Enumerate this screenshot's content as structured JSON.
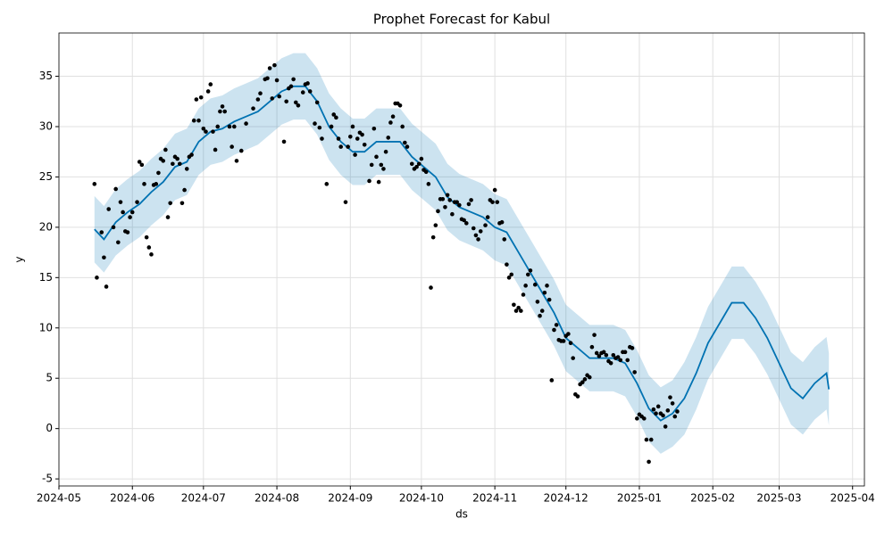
{
  "chart_data": {
    "type": "forecast",
    "title": "Prophet Forecast for Kabul",
    "xlabel": "ds",
    "ylabel": "y",
    "xlim": [
      "2024-05-01",
      "2025-04-06"
    ],
    "ylim": [
      -5.7,
      39.3
    ],
    "xticks": [
      {
        "value": "2024-05-01",
        "label": "2024-05"
      },
      {
        "value": "2024-06-01",
        "label": "2024-06"
      },
      {
        "value": "2024-07-01",
        "label": "2024-07"
      },
      {
        "value": "2024-08-01",
        "label": "2024-08"
      },
      {
        "value": "2024-09-01",
        "label": "2024-09"
      },
      {
        "value": "2024-10-01",
        "label": "2024-10"
      },
      {
        "value": "2024-11-01",
        "label": "2024-11"
      },
      {
        "value": "2024-12-01",
        "label": "2024-12"
      },
      {
        "value": "2025-01-01",
        "label": "2025-01"
      },
      {
        "value": "2025-02-01",
        "label": "2025-02"
      },
      {
        "value": "2025-03-01",
        "label": "2025-03"
      },
      {
        "value": "2025-04-01",
        "label": "2025-04"
      }
    ],
    "yticks": [
      -5,
      0,
      5,
      10,
      15,
      20,
      25,
      30,
      35
    ],
    "grid": true,
    "forecast": {
      "color": "#0072B2",
      "band_color": "#0072B2",
      "x": [
        "2024-05-16",
        "2024-05-20",
        "2024-05-25",
        "2024-05-30",
        "2024-06-04",
        "2024-06-09",
        "2024-06-14",
        "2024-06-19",
        "2024-06-24",
        "2024-06-29",
        "2024-07-04",
        "2024-07-09",
        "2024-07-14",
        "2024-07-19",
        "2024-07-24",
        "2024-07-29",
        "2024-08-03",
        "2024-08-08",
        "2024-08-13",
        "2024-08-18",
        "2024-08-23",
        "2024-08-28",
        "2024-09-02",
        "2024-09-07",
        "2024-09-12",
        "2024-09-17",
        "2024-09-22",
        "2024-09-27",
        "2024-10-02",
        "2024-10-07",
        "2024-10-12",
        "2024-10-17",
        "2024-10-22",
        "2024-10-27",
        "2024-11-01",
        "2024-11-06",
        "2024-11-11",
        "2024-11-16",
        "2024-11-21",
        "2024-11-26",
        "2024-12-01",
        "2024-12-06",
        "2024-12-11",
        "2024-12-16",
        "2024-12-21",
        "2024-12-26",
        "2024-12-31",
        "2025-01-05",
        "2025-01-10",
        "2025-01-15",
        "2025-01-20",
        "2025-01-25",
        "2025-01-30",
        "2025-02-04",
        "2025-02-09",
        "2025-02-14",
        "2025-02-19",
        "2025-02-24",
        "2025-03-01",
        "2025-03-06",
        "2025-03-11",
        "2025-03-16",
        "2025-03-21",
        "2025-03-22"
      ],
      "values": [
        19.8,
        18.8,
        20.5,
        21.5,
        22.3,
        23.5,
        24.5,
        26,
        26.5,
        28.5,
        29.5,
        29.8,
        30.5,
        31,
        31.5,
        32.5,
        33.5,
        34,
        34,
        32.5,
        30,
        28.5,
        27.5,
        27.5,
        28.5,
        28.5,
        28.5,
        27,
        26,
        25,
        23,
        22,
        21.5,
        21,
        20,
        19.5,
        17.5,
        15.5,
        13.5,
        11.5,
        9,
        8,
        7,
        7,
        7,
        6.5,
        4.5,
        2,
        0.8,
        1.5,
        3,
        5.5,
        8.5,
        10.5,
        12.5,
        12.5,
        11,
        9,
        6.5,
        4,
        3,
        4.5,
        5.5,
        3.9
      ],
      "lower": [
        16.5,
        15.5,
        17.2,
        18.2,
        19,
        20.2,
        21.2,
        22.7,
        23.2,
        25.2,
        26.2,
        26.5,
        27.2,
        27.7,
        28.2,
        29.2,
        30.2,
        30.7,
        30.7,
        29.2,
        26.7,
        25.2,
        24.2,
        24.2,
        25.2,
        25.2,
        25.2,
        23.7,
        22.7,
        21.7,
        19.7,
        18.7,
        18.2,
        17.7,
        16.7,
        16.2,
        14.2,
        12.2,
        10.2,
        8.2,
        5.7,
        4.7,
        3.7,
        3.7,
        3.7,
        3.2,
        1.2,
        -1.3,
        -2.5,
        -1.8,
        -0.6,
        1.9,
        4.9,
        6.9,
        8.9,
        8.9,
        7.4,
        5.4,
        2.9,
        0.4,
        -0.6,
        0.9,
        1.9,
        0.3
      ],
      "upper": [
        23.1,
        22.1,
        23.8,
        24.8,
        25.6,
        26.8,
        27.8,
        29.3,
        29.8,
        31.8,
        32.8,
        33.1,
        33.8,
        34.3,
        34.8,
        35.8,
        36.8,
        37.3,
        37.3,
        35.8,
        33.3,
        31.8,
        30.8,
        30.8,
        31.8,
        31.8,
        31.8,
        30.3,
        29.3,
        28.3,
        26.3,
        25.3,
        24.8,
        24.3,
        23.3,
        22.8,
        20.8,
        18.8,
        16.8,
        14.8,
        12.3,
        11.3,
        10.3,
        10.3,
        10.3,
        9.8,
        7.8,
        5.3,
        4.1,
        4.8,
        6.6,
        9.1,
        12.1,
        14.1,
        16.1,
        16.1,
        14.6,
        12.6,
        10.1,
        7.6,
        6.6,
        8.1,
        9.1,
        7.5
      ]
    },
    "observed": {
      "color": "#000000",
      "x": [
        "2024-05-16",
        "2024-05-17",
        "2024-05-19",
        "2024-05-20",
        "2024-05-21",
        "2024-05-22",
        "2024-05-24",
        "2024-05-25",
        "2024-05-26",
        "2024-05-27",
        "2024-05-28",
        "2024-05-29",
        "2024-05-30",
        "2024-05-31",
        "2024-06-01",
        "2024-06-03",
        "2024-06-04",
        "2024-06-05",
        "2024-06-06",
        "2024-06-07",
        "2024-06-08",
        "2024-06-09",
        "2024-06-10",
        "2024-06-11",
        "2024-06-12",
        "2024-06-13",
        "2024-06-14",
        "2024-06-15",
        "2024-06-16",
        "2024-06-17",
        "2024-06-18",
        "2024-06-19",
        "2024-06-20",
        "2024-06-21",
        "2024-06-22",
        "2024-06-23",
        "2024-06-24",
        "2024-06-25",
        "2024-06-26",
        "2024-06-27",
        "2024-06-28",
        "2024-06-29",
        "2024-06-30",
        "2024-07-01",
        "2024-07-02",
        "2024-07-03",
        "2024-07-04",
        "2024-07-05",
        "2024-07-06",
        "2024-07-07",
        "2024-07-08",
        "2024-07-09",
        "2024-07-10",
        "2024-07-12",
        "2024-07-13",
        "2024-07-14",
        "2024-07-15",
        "2024-07-17",
        "2024-07-19",
        "2024-07-22",
        "2024-07-24",
        "2024-07-25",
        "2024-07-27",
        "2024-07-28",
        "2024-07-29",
        "2024-07-30",
        "2024-07-31",
        "2024-08-01",
        "2024-08-02",
        "2024-08-04",
        "2024-08-05",
        "2024-08-06",
        "2024-08-07",
        "2024-08-08",
        "2024-08-09",
        "2024-08-10",
        "2024-08-12",
        "2024-08-13",
        "2024-08-14",
        "2024-08-15",
        "2024-08-17",
        "2024-08-18",
        "2024-08-19",
        "2024-08-20",
        "2024-08-22",
        "2024-08-24",
        "2024-08-25",
        "2024-08-26",
        "2024-08-27",
        "2024-08-28",
        "2024-08-30",
        "2024-08-31",
        "2024-09-01",
        "2024-09-02",
        "2024-09-03",
        "2024-09-04",
        "2024-09-05",
        "2024-09-06",
        "2024-09-07",
        "2024-09-09",
        "2024-09-10",
        "2024-09-11",
        "2024-09-12",
        "2024-09-13",
        "2024-09-14",
        "2024-09-15",
        "2024-09-16",
        "2024-09-17",
        "2024-09-18",
        "2024-09-19",
        "2024-09-20",
        "2024-09-21",
        "2024-09-22",
        "2024-09-23",
        "2024-09-24",
        "2024-09-25",
        "2024-09-27",
        "2024-09-28",
        "2024-09-29",
        "2024-09-30",
        "2024-10-01",
        "2024-10-02",
        "2024-10-03",
        "2024-10-04",
        "2024-10-05",
        "2024-10-06",
        "2024-10-07",
        "2024-10-08",
        "2024-10-09",
        "2024-10-10",
        "2024-10-11",
        "2024-10-12",
        "2024-10-13",
        "2024-10-14",
        "2024-10-15",
        "2024-10-16",
        "2024-10-17",
        "2024-10-18",
        "2024-10-19",
        "2024-10-20",
        "2024-10-21",
        "2024-10-22",
        "2024-10-23",
        "2024-10-24",
        "2024-10-25",
        "2024-10-26",
        "2024-10-28",
        "2024-10-29",
        "2024-10-30",
        "2024-10-31",
        "2024-11-01",
        "2024-11-02",
        "2024-11-03",
        "2024-11-04",
        "2024-11-05",
        "2024-11-06",
        "2024-11-07",
        "2024-11-08",
        "2024-11-09",
        "2024-11-10",
        "2024-11-11",
        "2024-11-12",
        "2024-11-13",
        "2024-11-14",
        "2024-11-15",
        "2024-11-16",
        "2024-11-18",
        "2024-11-19",
        "2024-11-20",
        "2024-11-21",
        "2024-11-22",
        "2024-11-23",
        "2024-11-24",
        "2024-11-25",
        "2024-11-26",
        "2024-11-27",
        "2024-11-28",
        "2024-11-29",
        "2024-11-30",
        "2024-12-01",
        "2024-12-02",
        "2024-12-03",
        "2024-12-04",
        "2024-12-05",
        "2024-12-06",
        "2024-12-07",
        "2024-12-08",
        "2024-12-09",
        "2024-12-10",
        "2024-12-11",
        "2024-12-12",
        "2024-12-13",
        "2024-12-14",
        "2024-12-15",
        "2024-12-16",
        "2024-12-17",
        "2024-12-18",
        "2024-12-19",
        "2024-12-20",
        "2024-12-21",
        "2024-12-22",
        "2024-12-23",
        "2024-12-24",
        "2024-12-25",
        "2024-12-26",
        "2024-12-27",
        "2024-12-28",
        "2024-12-29",
        "2024-12-30",
        "2024-12-31",
        "2025-01-01",
        "2025-01-02",
        "2025-01-03",
        "2025-01-04",
        "2025-01-05",
        "2025-01-06",
        "2025-01-07",
        "2025-01-08",
        "2025-01-09",
        "2025-01-10",
        "2025-01-11",
        "2025-01-12",
        "2025-01-13",
        "2025-01-14",
        "2025-01-15",
        "2025-01-16",
        "2025-01-17"
      ],
      "values": [
        24.3,
        15,
        19.5,
        17,
        14.1,
        21.8,
        20,
        23.8,
        18.5,
        22.5,
        21.5,
        19.6,
        19.5,
        21,
        21.5,
        22.5,
        26.5,
        26.2,
        24.3,
        19,
        18,
        17.3,
        24.2,
        24.3,
        25.4,
        26.8,
        26.6,
        27.7,
        21,
        22.4,
        26.3,
        27,
        26.8,
        26.3,
        22.4,
        23.7,
        25.8,
        27,
        27.2,
        30.6,
        32.7,
        30.6,
        32.9,
        29.8,
        29.5,
        33.5,
        34.2,
        29.5,
        27.7,
        30,
        31.5,
        32,
        31.5,
        30,
        28,
        30,
        26.6,
        27.6,
        30.3,
        31.8,
        32.7,
        33.3,
        34.7,
        34.8,
        35.8,
        32.8,
        36.1,
        34.6,
        33,
        28.5,
        32.5,
        33.8,
        34,
        34.7,
        32.4,
        32.1,
        33.4,
        34.2,
        34.3,
        33.5,
        30.3,
        32.4,
        29.9,
        28.8,
        24.3,
        30,
        31.2,
        30.9,
        28.8,
        28,
        22.5,
        28,
        29,
        30,
        27.2,
        28.8,
        29.4,
        29.2,
        28.2,
        24.6,
        26.2,
        29.8,
        27,
        24.5,
        26.2,
        25.8,
        27.5,
        28.9,
        30.4,
        31,
        32.3,
        32.3,
        32.1,
        30,
        28.4,
        28,
        26.3,
        25.8,
        26,
        26.3,
        26.8,
        25.7,
        25.5,
        24.3,
        14,
        19,
        20.2,
        21.6,
        22.8,
        22.8,
        22,
        23.2,
        22.7,
        21.3,
        22.5,
        22.5,
        22.2,
        20.8,
        20.7,
        20.4,
        22.3,
        22.7,
        19.9,
        19.2,
        18.8,
        19.6,
        20.2,
        21,
        22.7,
        22.5,
        23.7,
        22.5,
        20.4,
        20.5,
        18.8,
        16.3,
        15,
        15.3,
        12.3,
        11.7,
        12,
        11.7,
        13.3,
        14.2,
        15.3,
        15.7,
        14.3,
        12.6,
        11.2,
        11.7,
        13.5,
        14.2,
        12.8,
        4.8,
        9.8,
        10.3,
        8.8,
        8.7,
        8.7,
        9.2,
        9.4,
        8.5,
        7,
        3.4,
        3.2,
        4.4,
        4.6,
        4.9,
        5.3,
        5.1,
        8.1,
        9.3,
        7.5,
        7.2,
        7.5,
        7.6,
        7.3,
        6.7,
        6.5,
        7.3,
        7,
        7.1,
        6.8,
        7.6,
        7.6,
        6.8,
        8.1,
        8,
        5.6,
        1,
        1.4,
        1.2,
        1,
        -1.1,
        -3.3,
        -1.1,
        1.9,
        1.5,
        2.2,
        1.5,
        1.3,
        0.2,
        1.8,
        3.1,
        2.5,
        1.2,
        1.7
      ]
    }
  }
}
